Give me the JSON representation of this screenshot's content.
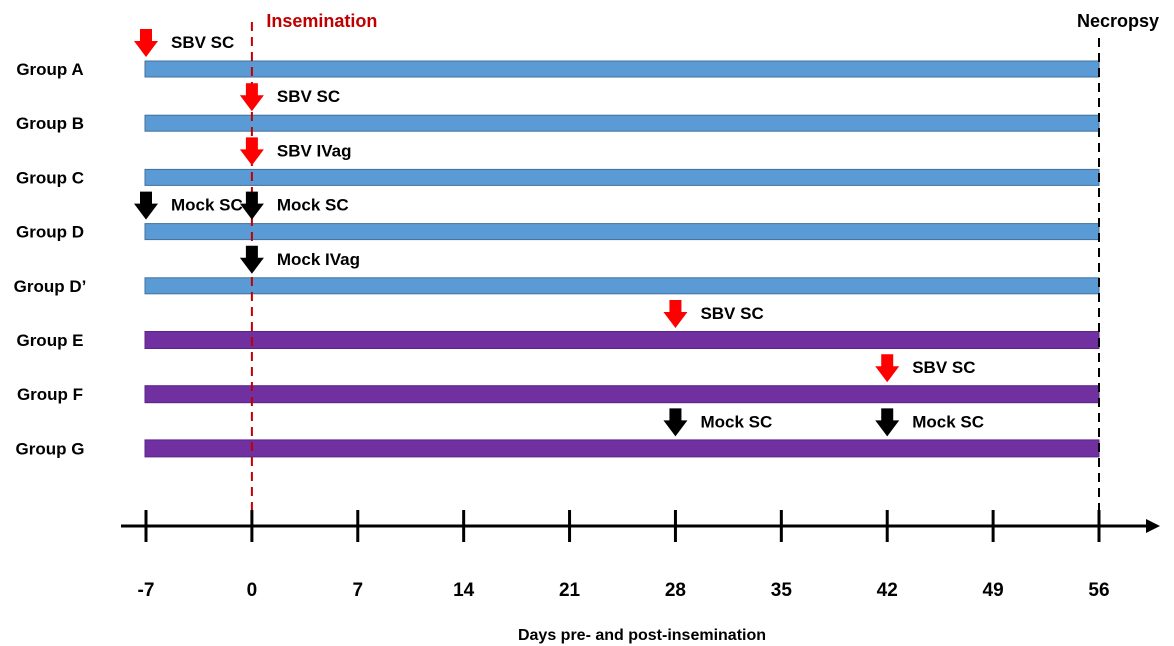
{
  "chart_data": {
    "type": "timeline",
    "xlabel": "Days pre- and post-insemination",
    "ticks": [
      -7,
      0,
      7,
      14,
      21,
      28,
      35,
      42,
      49,
      56
    ],
    "xlim": [
      -7,
      56
    ],
    "markers": [
      {
        "day": 0,
        "label": "Insemination",
        "color": "#c00000"
      },
      {
        "day": 56,
        "label": "Necropsy",
        "color": "#000000"
      }
    ],
    "colors": {
      "blue_bar": "#5b9bd5",
      "purple_bar": "#7030a0",
      "red_arrow": "#ff0000",
      "black_arrow": "#000000"
    },
    "groups": [
      {
        "name": "Group A",
        "bar_color": "blue",
        "events": [
          {
            "day": -7,
            "label": "SBV SC",
            "arrow": "red"
          }
        ]
      },
      {
        "name": "Group B",
        "bar_color": "blue",
        "events": [
          {
            "day": 0,
            "label": "SBV SC",
            "arrow": "red"
          }
        ]
      },
      {
        "name": "Group C",
        "bar_color": "blue",
        "events": [
          {
            "day": 0,
            "label": "SBV IVag",
            "arrow": "red"
          }
        ]
      },
      {
        "name": "Group D",
        "bar_color": "blue",
        "events": [
          {
            "day": -7,
            "label": "Mock SC",
            "arrow": "black"
          },
          {
            "day": 0,
            "label": "Mock SC",
            "arrow": "black"
          }
        ]
      },
      {
        "name": "Group D’",
        "bar_color": "blue",
        "events": [
          {
            "day": 0,
            "label": "Mock IVag",
            "arrow": "black"
          }
        ]
      },
      {
        "name": "Group E",
        "bar_color": "purple",
        "events": [
          {
            "day": 28,
            "label": "SBV SC",
            "arrow": "red"
          }
        ]
      },
      {
        "name": "Group F",
        "bar_color": "purple",
        "events": [
          {
            "day": 42,
            "label": "SBV SC",
            "arrow": "red"
          }
        ]
      },
      {
        "name": "Group G",
        "bar_color": "purple",
        "events": [
          {
            "day": 28,
            "label": "Mock SC",
            "arrow": "black"
          },
          {
            "day": 42,
            "label": "Mock SC",
            "arrow": "black"
          }
        ]
      }
    ]
  }
}
